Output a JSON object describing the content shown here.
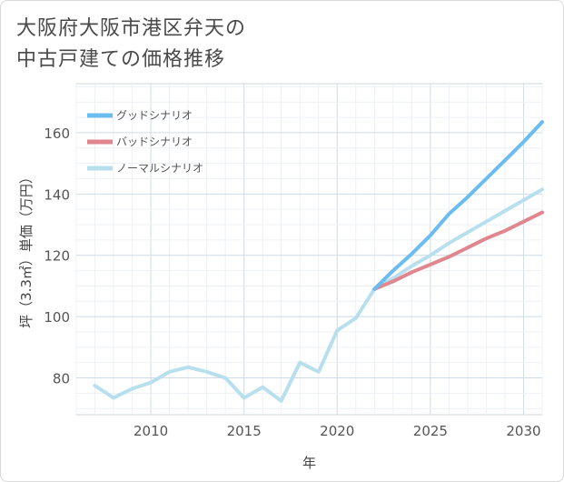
{
  "title_lines": [
    "大阪府大阪市港区弁天の",
    "中古戸建ての価格推移"
  ],
  "chart_data": {
    "type": "line",
    "xlabel": "年",
    "ylabel": "坪（3.3㎡）単価（万円）",
    "xlim": [
      2006,
      2031
    ],
    "ylim": [
      68,
      176
    ],
    "x_ticks": [
      2010,
      2015,
      2020,
      2025,
      2030
    ],
    "y_ticks": [
      80,
      100,
      120,
      140,
      160
    ],
    "grid": true,
    "legend_position": "top-left",
    "series": [
      {
        "name": "グッドシナリオ",
        "color": "#6bbcf0",
        "x": [
          2022,
          2023,
          2024,
          2025,
          2026,
          2027,
          2028,
          2029,
          2030,
          2031
        ],
        "y": [
          109,
          115,
          120.5,
          126.5,
          133.5,
          139,
          145,
          151,
          157,
          163.5
        ]
      },
      {
        "name": "バッドシナリオ",
        "color": "#e0868f",
        "x": [
          2022,
          2023,
          2024,
          2025,
          2026,
          2027,
          2028,
          2029,
          2030,
          2031
        ],
        "y": [
          109,
          111.5,
          114.5,
          117,
          119.5,
          122.5,
          125.5,
          128,
          131,
          134
        ]
      },
      {
        "name": "ノーマルシナリオ",
        "color": "#b8dfee",
        "x": [
          2007,
          2008,
          2009,
          2010,
          2011,
          2012,
          2013,
          2014,
          2015,
          2016,
          2017,
          2018,
          2019,
          2020,
          2021,
          2022,
          2023,
          2024,
          2025,
          2026,
          2027,
          2028,
          2029,
          2030,
          2031
        ],
        "y": [
          77.5,
          73.5,
          76.5,
          78.5,
          82,
          83.5,
          82,
          80,
          73.5,
          77,
          72.5,
          85,
          82,
          95.5,
          99.5,
          109,
          112.5,
          116.5,
          120,
          124,
          127.5,
          131,
          134.5,
          138,
          141.5
        ]
      }
    ]
  }
}
